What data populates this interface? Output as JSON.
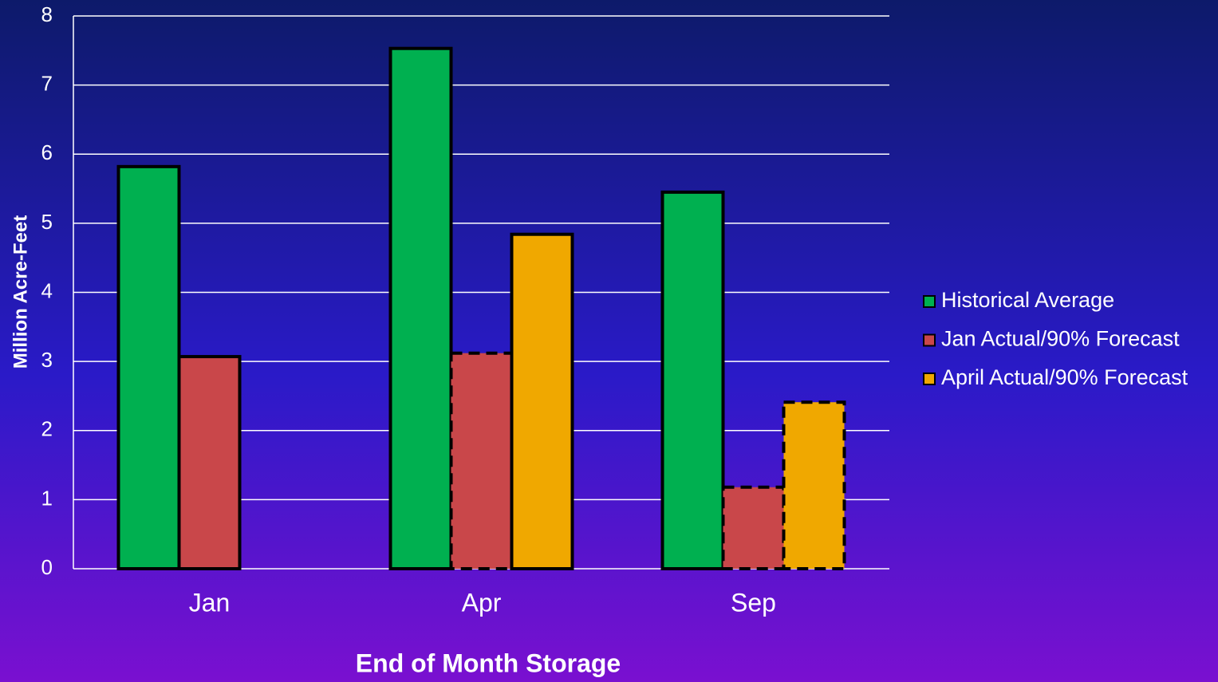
{
  "chart_data": {
    "type": "bar",
    "x_label": "End of Month Storage",
    "y_label": "Million Acre-Feet",
    "categories": [
      "Jan",
      "Apr",
      "Sep"
    ],
    "series": [
      {
        "name": "Historical Average",
        "color": "#00b050",
        "values": [
          5.82,
          7.53,
          5.45
        ],
        "dashed": [
          false,
          false,
          false
        ]
      },
      {
        "name": "Jan Actual/90% Forecast",
        "color": "#c9474a",
        "values": [
          3.07,
          3.12,
          1.18
        ],
        "dashed": [
          false,
          true,
          true
        ]
      },
      {
        "name": "April Actual/90% Forecast",
        "color": "#f0a800",
        "values": [
          null,
          4.84,
          2.41
        ],
        "dashed": [
          false,
          false,
          true
        ]
      }
    ],
    "ylim": [
      0,
      8
    ],
    "yticks": [
      0,
      1,
      2,
      3,
      4,
      5,
      6,
      7,
      8
    ],
    "grid": true,
    "legend": "right"
  }
}
